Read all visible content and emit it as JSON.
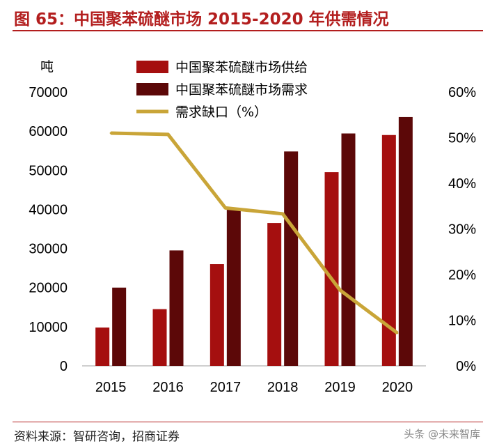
{
  "figure_title": "图 65：中国聚苯硫醚市场 2015-2020 年供需情况",
  "source_note": "资料来源：智研咨询，招商证券",
  "watermark": "头条 @未来智库",
  "colors": {
    "title": "#b31e1e",
    "supply": "#a50f0f",
    "demand": "#5c0808",
    "gap": "#c9a538"
  },
  "chart_data": {
    "type": "bar",
    "categories": [
      "2015",
      "2016",
      "2017",
      "2018",
      "2019",
      "2020"
    ],
    "ylabel": "吨",
    "ylim": [
      0,
      70000
    ],
    "y_ticks": [
      "0",
      "10000",
      "20000",
      "30000",
      "40000",
      "50000",
      "60000",
      "70000"
    ],
    "y2lim": [
      0,
      60
    ],
    "y2_ticks": [
      "0%",
      "10%",
      "20%",
      "30%",
      "40%",
      "50%",
      "60%"
    ],
    "series": [
      {
        "name": "中国聚苯硫醚市场供给",
        "type": "bar",
        "axis": "left",
        "values": [
          9800,
          14500,
          26000,
          36500,
          49500,
          59000
        ]
      },
      {
        "name": "中国聚苯硫醚市场需求",
        "type": "bar",
        "axis": "left",
        "values": [
          20000,
          29500,
          40000,
          54800,
          59400,
          63600
        ]
      },
      {
        "name": "需求缺口（%）",
        "type": "line",
        "axis": "right",
        "values": [
          51,
          50.7,
          34.6,
          33.3,
          16.6,
          7.2
        ]
      }
    ],
    "legend_position": "top",
    "grid": false
  }
}
